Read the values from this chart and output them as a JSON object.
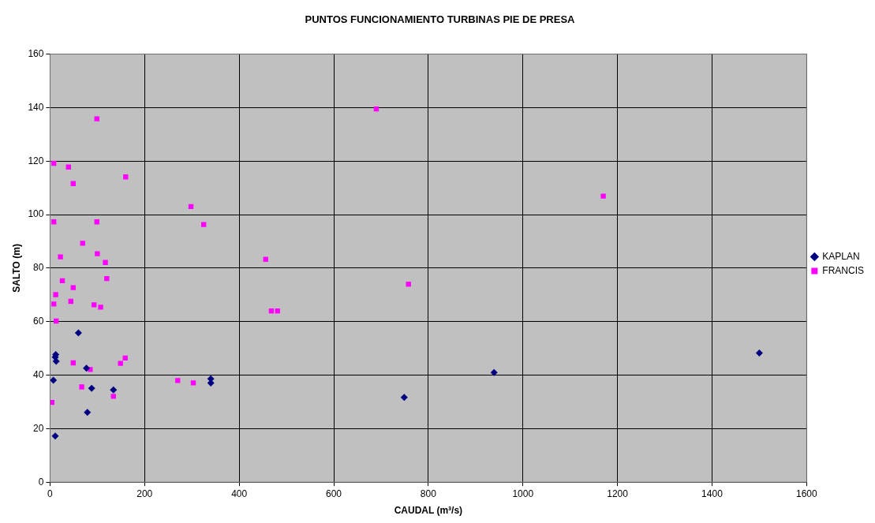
{
  "chart_data": {
    "type": "scatter",
    "title": "PUNTOS FUNCIONAMIENTO TURBINAS PIE DE PRESA",
    "xlabel": "CAUDAL (m³/s)",
    "ylabel": "SALTO (m)",
    "xlim": [
      0,
      1600
    ],
    "xticks": [
      0,
      200,
      400,
      600,
      800,
      1000,
      1200,
      1400,
      1600
    ],
    "ylim": [
      0,
      160
    ],
    "yticks": [
      0,
      20,
      40,
      60,
      80,
      100,
      120,
      140,
      160
    ],
    "grid": true,
    "legend": "right",
    "series": [
      {
        "name": "KAPLAN",
        "color": "#000080",
        "marker": "diamond",
        "x": [
          60,
          12,
          11,
          13,
          77,
          7,
          88,
          134,
          79,
          11,
          340,
          340,
          749,
          939,
          1500
        ],
        "values": [
          55.8,
          47.7,
          46.7,
          45.2,
          42.6,
          38.1,
          35.1,
          34.5,
          26.1,
          17.2,
          38.6,
          37.1,
          31.7,
          41,
          48.3
        ]
      },
      {
        "name": "FRANCIS",
        "color": "#ff00ff",
        "marker": "square",
        "x": [
          99,
          8,
          39,
          160,
          49,
          8,
          99,
          69,
          22,
          100,
          117,
          120,
          26,
          49,
          12,
          44,
          8,
          93,
          107,
          13,
          159,
          149,
          49,
          85,
          67,
          134,
          4,
          298,
          325,
          456,
          468,
          481,
          270,
          303,
          690,
          1170,
          758
        ],
        "values": [
          135.8,
          119.2,
          117.8,
          114.1,
          111.6,
          97.3,
          97.3,
          89.3,
          84.2,
          85.4,
          82.1,
          76.1,
          75.3,
          72.7,
          70.1,
          67.6,
          66.6,
          66.3,
          65.4,
          60.2,
          46.4,
          44.4,
          44.6,
          42.1,
          35.6,
          32.1,
          29.8,
          103,
          96.3,
          83.3,
          64,
          64,
          38,
          37.1,
          139.5,
          106.9,
          74
        ]
      }
    ]
  }
}
